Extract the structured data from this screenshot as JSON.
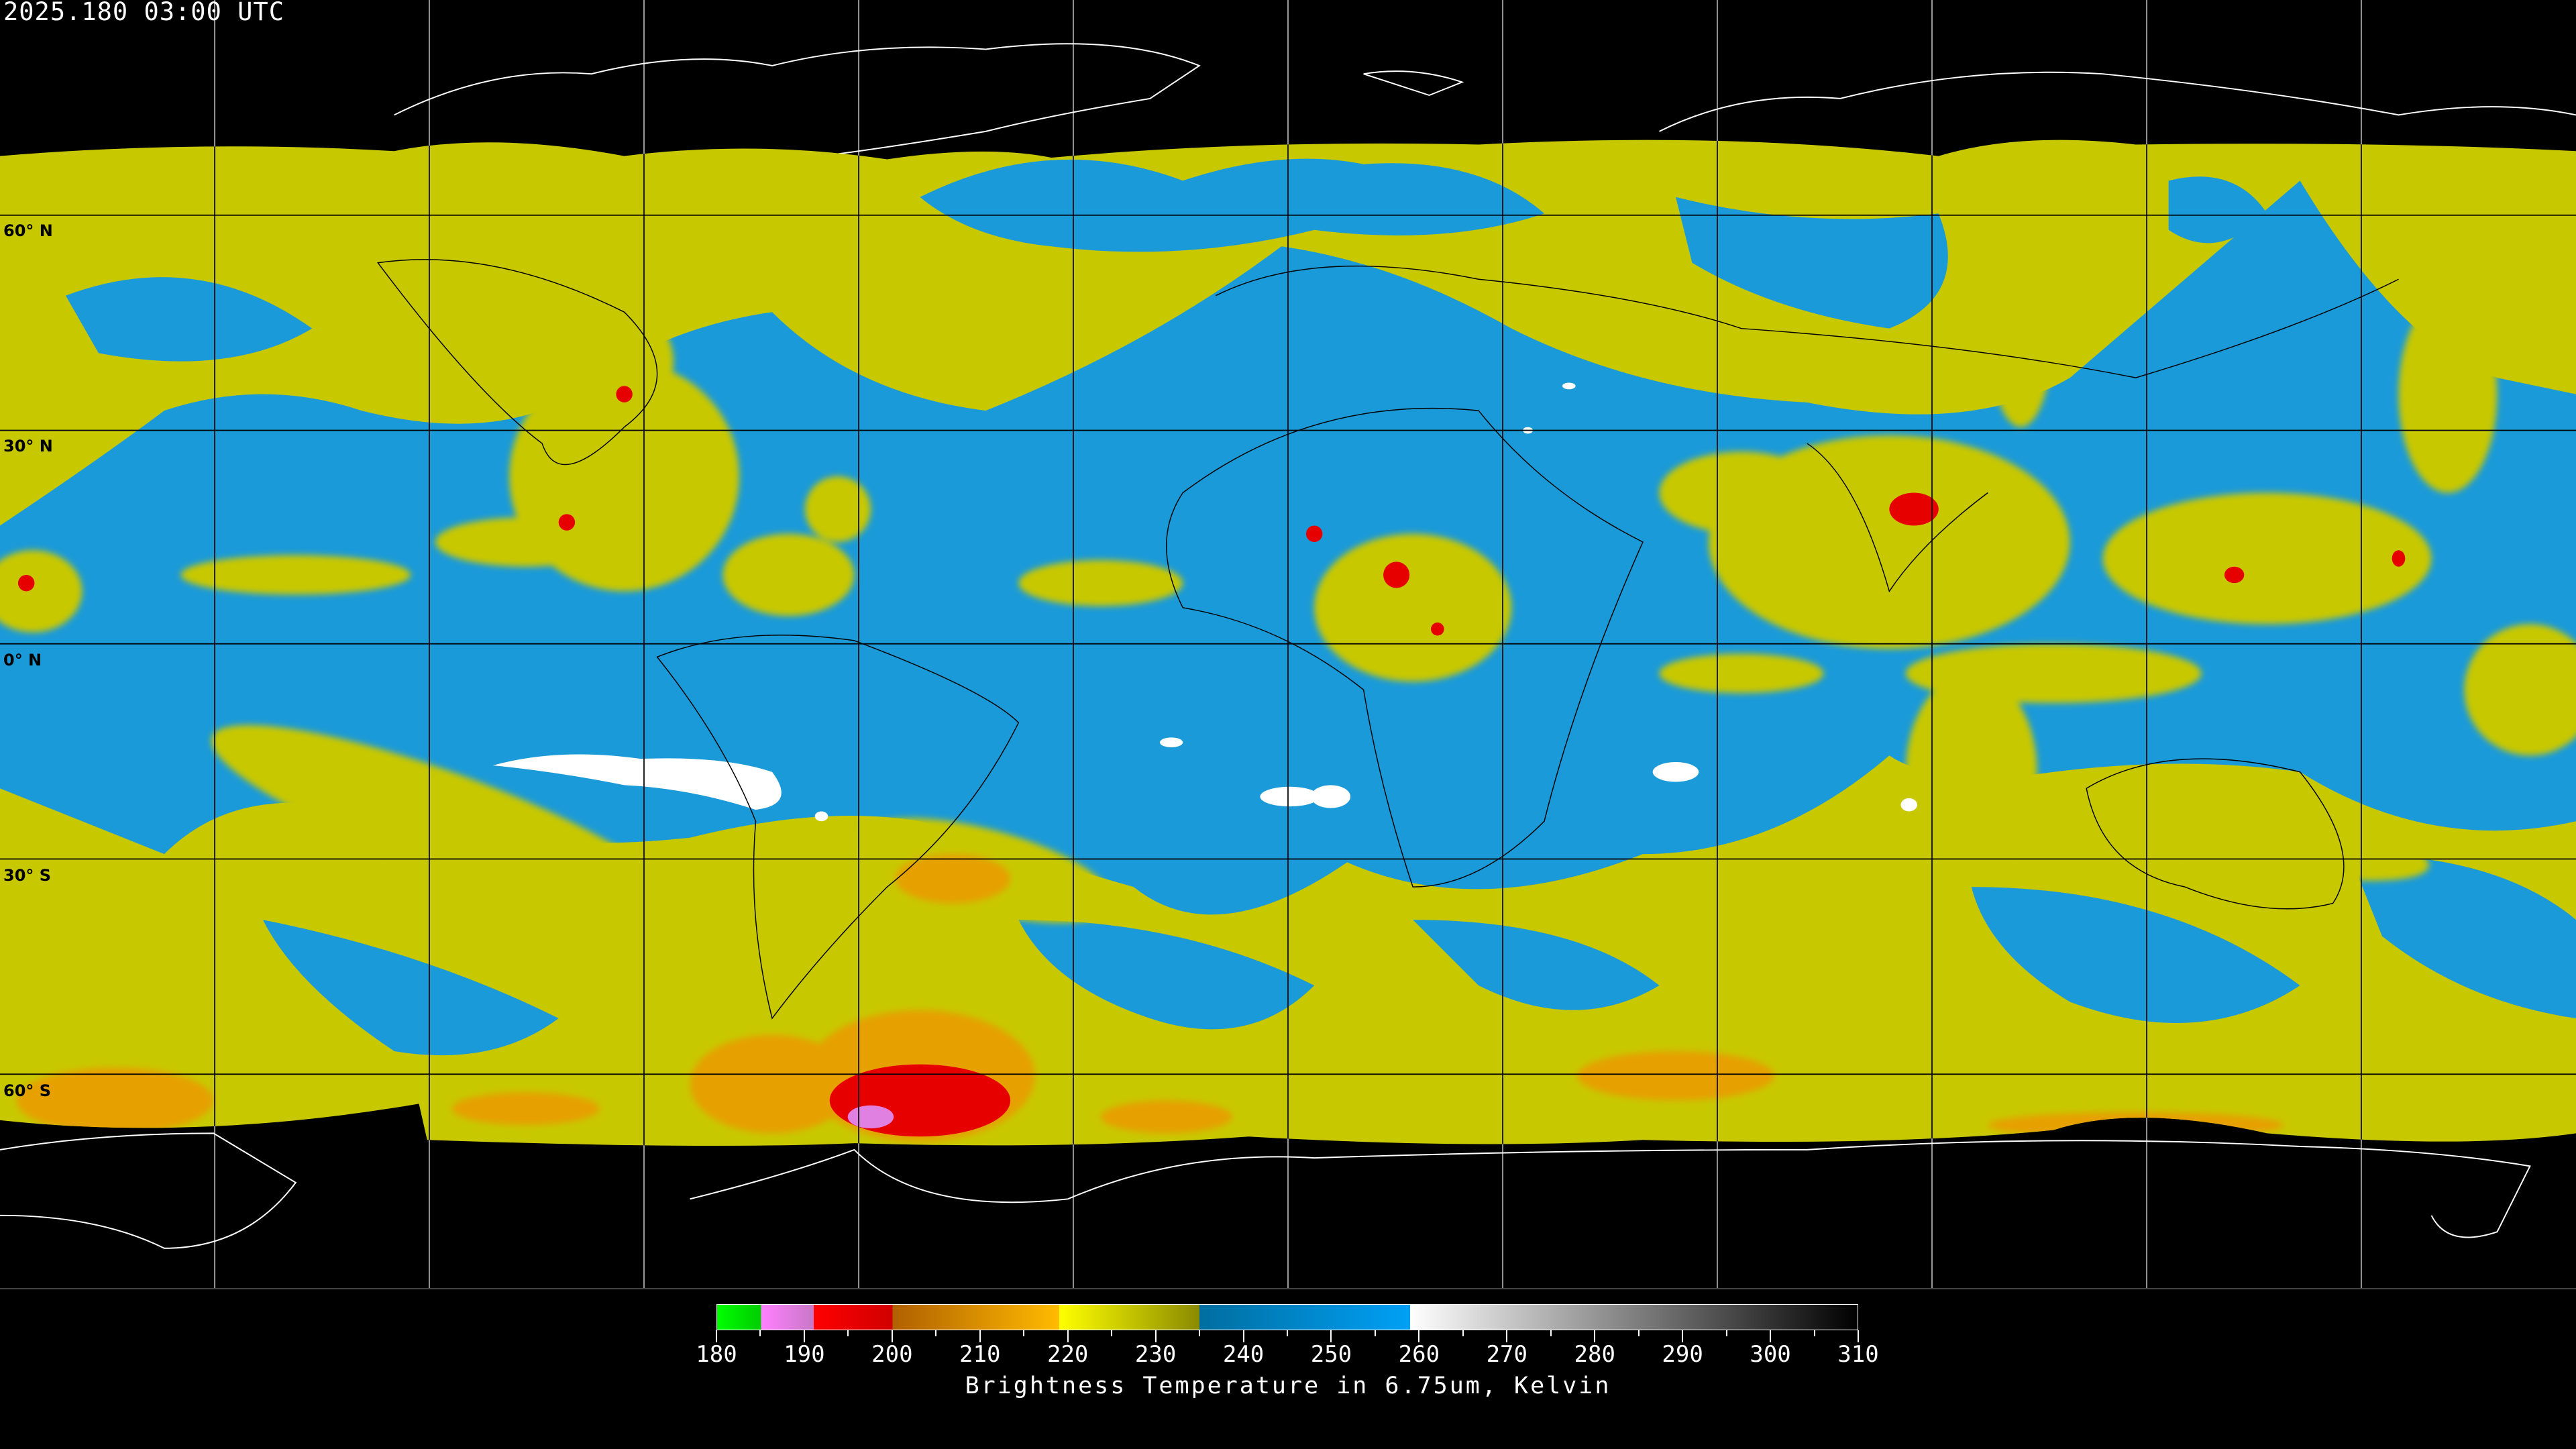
{
  "header": {
    "timestamp": "2025.180 03:00 UTC"
  },
  "map": {
    "projection": "equirectangular",
    "latitude_labels": [
      "60° N",
      "30° N",
      "0° N",
      "30° S",
      "60° S"
    ],
    "graticule_spacing_deg": 30,
    "colors": {
      "background": "#000000",
      "moist": "#1a9ad8",
      "mid": "#c8c800",
      "dry_high": "#e6a000",
      "cold": "#e60000",
      "very_cold": "#e080e0",
      "warm_clear": "#ffffff"
    }
  },
  "colorbar": {
    "title": "Brightness Temperature in 6.75um, Kelvin",
    "min": 180,
    "max": 310,
    "tick_labels": [
      "180",
      "190",
      "200",
      "210",
      "220",
      "230",
      "240",
      "250",
      "260",
      "270",
      "280",
      "290",
      "300",
      "310"
    ],
    "segments": [
      {
        "from": 180,
        "to": 185,
        "colors": [
          "#00ff00",
          "#00cc00"
        ]
      },
      {
        "from": 185,
        "to": 191,
        "colors": [
          "#ff80ff",
          "#c878c8"
        ]
      },
      {
        "from": 191,
        "to": 200,
        "colors": [
          "#ff0000",
          "#d00000"
        ]
      },
      {
        "from": 200,
        "to": 219,
        "colors": [
          "#b06000",
          "#ffbb00"
        ]
      },
      {
        "from": 219,
        "to": 235,
        "colors": [
          "#ffff00",
          "#8a8a00"
        ]
      },
      {
        "from": 235,
        "to": 259,
        "colors": [
          "#006ea0",
          "#00a0f5"
        ]
      },
      {
        "from": 259,
        "to": 310,
        "colors": [
          "#ffffff",
          "#000000"
        ]
      }
    ]
  }
}
